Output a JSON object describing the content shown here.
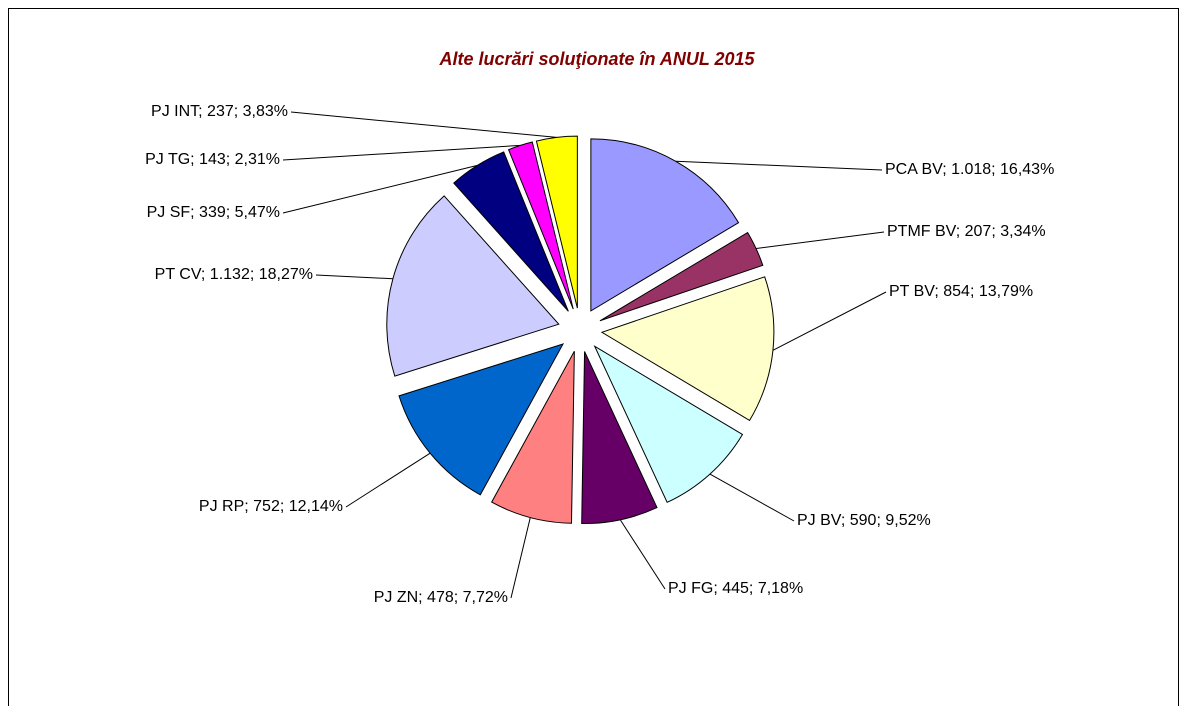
{
  "chart_data": {
    "type": "pie",
    "title": "Alte lucrări soluţionate în ANUL 2015",
    "categories": [
      "PCA BV",
      "PTMF BV",
      "PT BV",
      "PJ BV",
      "PJ FG",
      "PJ ZN",
      "PJ RP",
      "PT CV",
      "PJ SF",
      "PJ TG",
      "PJ INT"
    ],
    "values": [
      1018,
      207,
      854,
      590,
      445,
      478,
      752,
      1132,
      339,
      143,
      237
    ],
    "value_labels": [
      "PCA BV; 1.018; 16,43%",
      "PTMF BV; 207; 3,34%",
      "PT BV; 854; 13,79%",
      "PJ BV; 590; 9,52%",
      "PJ FG; 445; 7,18%",
      "PJ ZN; 478; 7,72%",
      "PJ RP; 752; 12,14%",
      "PT CV; 1.132; 18,27%",
      "PJ SF; 339; 5,47%",
      "PJ TG; 143; 2,31%",
      "PJ INT; 237; 3,83%"
    ],
    "colors": [
      "#9999ff",
      "#993366",
      "#ffffcc",
      "#ccffff",
      "#660066",
      "#ff8080",
      "#0066cc",
      "#ccccff",
      "#000080",
      "#ff00ff",
      "#ffff00"
    ]
  }
}
